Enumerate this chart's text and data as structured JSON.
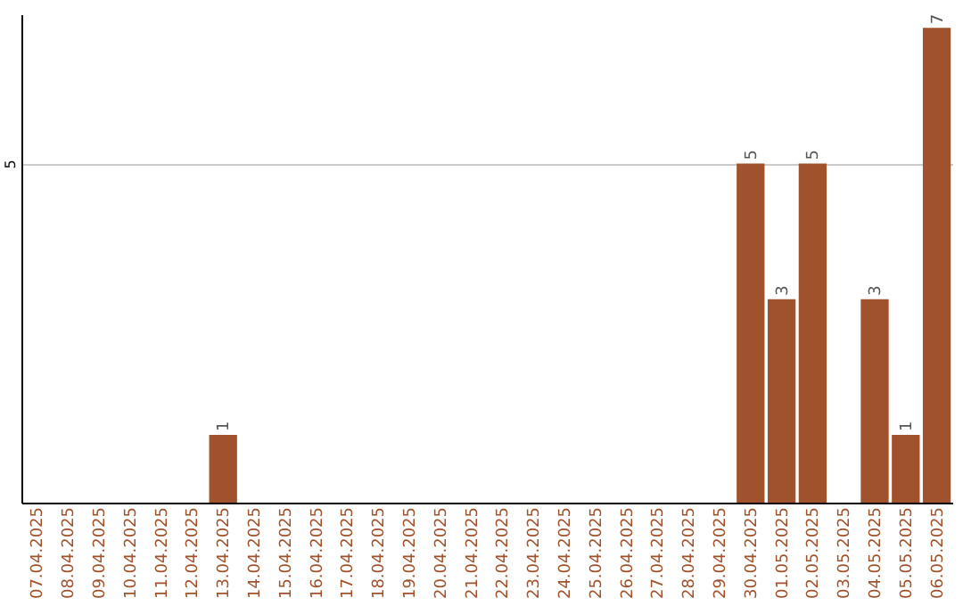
{
  "chart_data": {
    "type": "bar",
    "categories": [
      "07.04.2025",
      "08.04.2025",
      "09.04.2025",
      "10.04.2025",
      "11.04.2025",
      "12.04.2025",
      "13.04.2025",
      "14.04.2025",
      "15.04.2025",
      "16.04.2025",
      "17.04.2025",
      "18.04.2025",
      "19.04.2025",
      "20.04.2025",
      "21.04.2025",
      "22.04.2025",
      "23.04.2025",
      "24.04.2025",
      "25.04.2025",
      "26.04.2025",
      "27.04.2025",
      "28.04.2025",
      "29.04.2025",
      "30.04.2025",
      "01.05.2025",
      "02.05.2025",
      "03.05.2025",
      "04.05.2025",
      "05.05.2025",
      "06.05.2025"
    ],
    "values": [
      0,
      0,
      0,
      0,
      0,
      0,
      1,
      0,
      0,
      0,
      0,
      0,
      0,
      0,
      0,
      0,
      0,
      0,
      0,
      0,
      0,
      0,
      0,
      5,
      3,
      5,
      0,
      3,
      1,
      7
    ],
    "value_labels": [
      null,
      null,
      null,
      null,
      null,
      null,
      "1",
      null,
      null,
      null,
      null,
      null,
      null,
      null,
      null,
      null,
      null,
      null,
      null,
      null,
      null,
      null,
      null,
      "5",
      "3",
      "5",
      null,
      "3",
      "1",
      "7"
    ],
    "color": "#a0522d",
    "ylim": [
      0,
      7.2
    ],
    "yticks": [
      5
    ],
    "grid": "y"
  }
}
